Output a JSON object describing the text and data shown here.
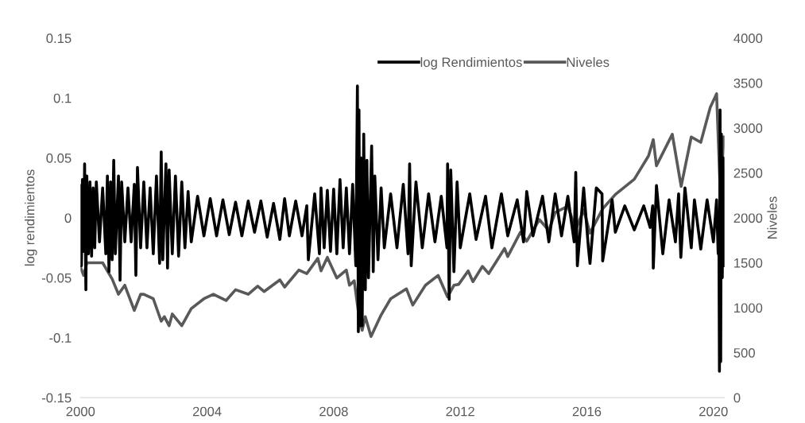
{
  "chart_data": {
    "type": "line",
    "ylabel": "log rendimientos",
    "y2label": "Niveles",
    "xlim": [
      2000,
      2020.35
    ],
    "xticks": [
      2000,
      2004,
      2008,
      2012,
      2016,
      2020
    ],
    "ylim": [
      -0.15,
      0.15
    ],
    "yticks": [
      -0.15,
      -0.1,
      -0.05,
      0,
      0.05,
      0.1,
      0.15
    ],
    "y2lim": [
      0,
      4000
    ],
    "y2ticks": [
      0,
      500,
      1000,
      1500,
      2000,
      2500,
      3000,
      3500,
      4000
    ],
    "legend": "top right",
    "grid": false,
    "marker": "none",
    "line_style": "solid",
    "series": [
      {
        "name": "log Rendimientos",
        "color": "#000000",
        "x": [
          2000.0,
          2000.03,
          2000.06,
          2000.1,
          2000.13,
          2000.17,
          2000.2,
          2000.25,
          2000.3,
          2000.35,
          2000.4,
          2000.45,
          2000.5,
          2000.6,
          2000.7,
          2000.8,
          2000.85,
          2000.9,
          2000.95,
          2001.0,
          2001.05,
          2001.1,
          2001.2,
          2001.25,
          2001.3,
          2001.4,
          2001.5,
          2001.6,
          2001.7,
          2001.75,
          2001.8,
          2001.9,
          2002.0,
          2002.1,
          2002.2,
          2002.3,
          2002.4,
          2002.5,
          2002.55,
          2002.6,
          2002.7,
          2002.75,
          2002.8,
          2002.9,
          2003.0,
          2003.1,
          2003.2,
          2003.3,
          2003.4,
          2003.5,
          2003.7,
          2003.9,
          2004.1,
          2004.3,
          2004.5,
          2004.7,
          2004.9,
          2005.1,
          2005.3,
          2005.5,
          2005.7,
          2005.9,
          2006.1,
          2006.3,
          2006.45,
          2006.6,
          2006.8,
          2007.0,
          2007.15,
          2007.2,
          2007.4,
          2007.55,
          2007.6,
          2007.7,
          2007.8,
          2007.9,
          2008.0,
          2008.1,
          2008.2,
          2008.3,
          2008.4,
          2008.5,
          2008.6,
          2008.7,
          2008.75,
          2008.78,
          2008.8,
          2008.83,
          2008.86,
          2008.9,
          2008.95,
          2009.0,
          2009.05,
          2009.1,
          2009.2,
          2009.25,
          2009.3,
          2009.4,
          2009.5,
          2009.6,
          2009.8,
          2010.0,
          2010.2,
          2010.35,
          2010.4,
          2010.45,
          2010.6,
          2010.8,
          2011.0,
          2011.2,
          2011.4,
          2011.58,
          2011.6,
          2011.65,
          2011.7,
          2011.8,
          2011.9,
          2012.0,
          2012.3,
          2012.5,
          2012.8,
          2013.0,
          2013.3,
          2013.5,
          2013.8,
          2014.0,
          2014.1,
          2014.3,
          2014.6,
          2014.8,
          2015.0,
          2015.2,
          2015.4,
          2015.6,
          2015.65,
          2015.7,
          2015.9,
          2016.05,
          2016.1,
          2016.3,
          2016.48,
          2016.5,
          2016.8,
          2016.9,
          2017.2,
          2017.5,
          2017.8,
          2018.0,
          2018.08,
          2018.1,
          2018.2,
          2018.4,
          2018.6,
          2018.8,
          2018.9,
          2018.97,
          2019.1,
          2019.3,
          2019.4,
          2019.6,
          2019.8,
          2020.0,
          2020.1,
          2020.15,
          2020.17,
          2020.19,
          2020.21,
          2020.23,
          2020.25,
          2020.28,
          2020.31,
          2020.33
        ],
        "values": [
          0.027,
          -0.04,
          0.032,
          -0.028,
          0.045,
          -0.06,
          0.035,
          -0.03,
          0.03,
          -0.032,
          0.025,
          -0.025,
          0.03,
          -0.02,
          0.025,
          -0.03,
          0.035,
          -0.045,
          0.03,
          -0.035,
          0.048,
          -0.03,
          0.035,
          -0.052,
          0.03,
          -0.02,
          0.025,
          -0.02,
          0.028,
          -0.048,
          0.042,
          -0.025,
          0.03,
          -0.025,
          0.025,
          -0.03,
          0.035,
          -0.038,
          0.055,
          -0.035,
          0.045,
          -0.042,
          0.04,
          -0.03,
          0.035,
          -0.032,
          0.03,
          -0.025,
          0.022,
          -0.02,
          0.018,
          -0.015,
          0.016,
          -0.015,
          0.015,
          -0.014,
          0.013,
          -0.015,
          0.014,
          -0.012,
          0.014,
          -0.016,
          0.012,
          -0.018,
          0.016,
          -0.015,
          0.014,
          -0.015,
          0.01,
          -0.035,
          0.02,
          -0.03,
          0.025,
          -0.025,
          0.023,
          -0.028,
          0.024,
          -0.03,
          0.032,
          -0.025,
          0.025,
          -0.03,
          0.028,
          -0.04,
          0.11,
          -0.095,
          0.09,
          -0.09,
          0.05,
          -0.09,
          0.07,
          -0.06,
          0.048,
          -0.05,
          0.06,
          -0.045,
          0.035,
          -0.035,
          0.025,
          -0.025,
          0.02,
          -0.025,
          0.028,
          -0.03,
          0.045,
          -0.04,
          0.03,
          -0.025,
          0.02,
          -0.02,
          0.018,
          -0.025,
          0.045,
          -0.068,
          0.04,
          -0.045,
          0.03,
          -0.025,
          0.02,
          -0.018,
          0.018,
          -0.025,
          0.02,
          -0.015,
          0.015,
          -0.02,
          0.022,
          -0.015,
          0.018,
          -0.02,
          0.02,
          -0.015,
          0.018,
          -0.02,
          0.038,
          -0.04,
          0.025,
          -0.025,
          -0.038,
          0.025,
          0.02,
          -0.036,
          0.015,
          -0.012,
          0.01,
          -0.01,
          0.01,
          -0.008,
          0.01,
          -0.042,
          0.027,
          -0.03,
          0.015,
          -0.02,
          0.02,
          -0.033,
          0.025,
          -0.025,
          0.015,
          -0.026,
          0.015,
          -0.02,
          0.015,
          -0.03,
          0.005,
          -0.128,
          0.09,
          -0.12,
          0.07,
          -0.05,
          0.05,
          -0.04
        ]
      },
      {
        "name": "Niveles",
        "color": "#595959",
        "axis": "y2",
        "x": [
          2000.0,
          2000.1,
          2000.2,
          2000.7,
          2001.0,
          2001.2,
          2001.4,
          2001.7,
          2001.9,
          2002.0,
          2002.3,
          2002.55,
          2002.65,
          2002.8,
          2002.9,
          2003.2,
          2003.5,
          2003.9,
          2004.2,
          2004.6,
          2004.9,
          2005.3,
          2005.6,
          2005.8,
          2006.3,
          2006.45,
          2006.9,
          2007.15,
          2007.5,
          2007.6,
          2007.8,
          2008.1,
          2008.4,
          2008.5,
          2008.65,
          2008.8,
          2008.9,
          2009.0,
          2009.18,
          2009.5,
          2009.8,
          2010.3,
          2010.5,
          2010.9,
          2011.3,
          2011.6,
          2011.8,
          2011.95,
          2012.25,
          2012.4,
          2012.7,
          2012.9,
          2013.4,
          2013.5,
          2013.9,
          2014.1,
          2014.5,
          2014.8,
          2015.0,
          2015.4,
          2015.65,
          2015.9,
          2016.1,
          2016.5,
          2016.9,
          2017.5,
          2017.95,
          2018.1,
          2018.2,
          2018.7,
          2018.98,
          2019.3,
          2019.6,
          2019.9,
          2020.1,
          2020.22,
          2020.33
        ],
        "values": [
          1450,
          1360,
          1500,
          1500,
          1320,
          1150,
          1250,
          970,
          1150,
          1150,
          1100,
          850,
          900,
          800,
          930,
          800,
          990,
          1100,
          1150,
          1080,
          1200,
          1150,
          1240,
          1180,
          1310,
          1230,
          1420,
          1380,
          1550,
          1410,
          1560,
          1330,
          1420,
          1250,
          1300,
          900,
          750,
          900,
          680,
          920,
          1100,
          1210,
          1030,
          1250,
          1360,
          1120,
          1250,
          1260,
          1410,
          1290,
          1460,
          1380,
          1660,
          1570,
          1840,
          1740,
          1980,
          1860,
          2060,
          2130,
          1870,
          2090,
          1830,
          2100,
          2260,
          2430,
          2690,
          2870,
          2580,
          2930,
          2350,
          2900,
          2840,
          3230,
          3380,
          2240,
          2900
        ]
      }
    ]
  }
}
